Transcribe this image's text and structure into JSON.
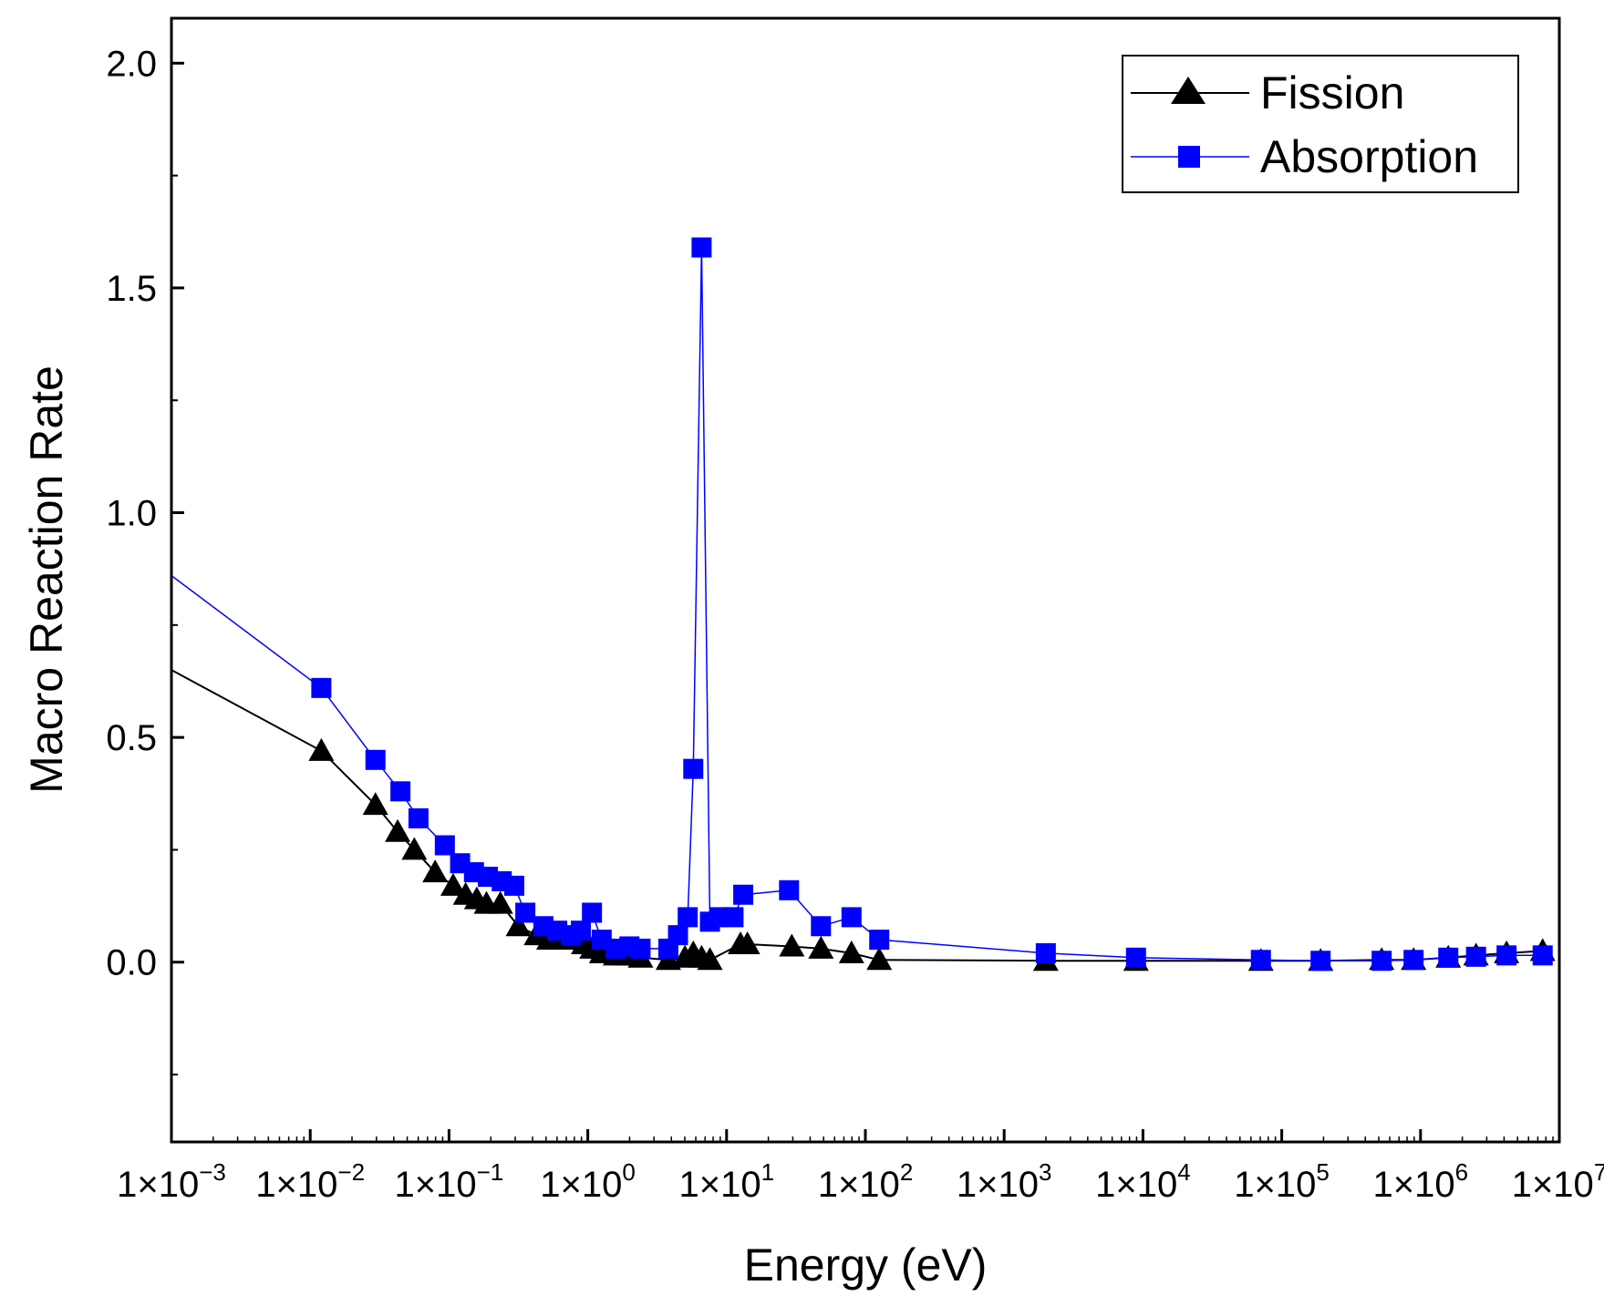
{
  "chart_data": {
    "type": "line",
    "xlabel": "Energy (eV)",
    "ylabel": "Macro Reaction Rate",
    "xscale": "log",
    "xlim_exp": [
      -3,
      7
    ],
    "ylim": [
      -0.4,
      2.1
    ],
    "y_ticks": [
      0.0,
      0.5,
      1.0,
      1.5,
      2.0
    ],
    "y_tick_labels": [
      "0.0",
      "0.5",
      "1.0",
      "1.5",
      "2.0"
    ],
    "x_ticks": [
      {
        "base": "1×10",
        "exp": "−3"
      },
      {
        "base": "1×10",
        "exp": "−2"
      },
      {
        "base": "1×10",
        "exp": "−1"
      },
      {
        "base": "1×10",
        "exp": "0"
      },
      {
        "base": "1×10",
        "exp": "1"
      },
      {
        "base": "1×10",
        "exp": "2"
      },
      {
        "base": "1×10",
        "exp": "3"
      },
      {
        "base": "1×10",
        "exp": "4"
      },
      {
        "base": "1×10",
        "exp": "5"
      },
      {
        "base": "1×10",
        "exp": "6"
      },
      {
        "base": "1×10",
        "exp": "7"
      }
    ],
    "legend_position": "top-right",
    "series": [
      {
        "name": "Fission",
        "color": "#000000",
        "marker": "triangle",
        "points": [
          [
            -3.0,
            0.65
          ],
          [
            -1.92,
            0.47
          ],
          [
            -1.53,
            0.35
          ],
          [
            -1.37,
            0.29
          ],
          [
            -1.25,
            0.25
          ],
          [
            -1.1,
            0.2
          ],
          [
            -0.97,
            0.17
          ],
          [
            -0.88,
            0.15
          ],
          [
            -0.8,
            0.14
          ],
          [
            -0.73,
            0.13
          ],
          [
            -0.63,
            0.13
          ],
          [
            -0.5,
            0.08
          ],
          [
            -0.37,
            0.06
          ],
          [
            -0.28,
            0.05
          ],
          [
            -0.18,
            0.05
          ],
          [
            -0.1,
            0.05
          ],
          [
            -0.03,
            0.04
          ],
          [
            0.03,
            0.03
          ],
          [
            0.1,
            0.02
          ],
          [
            0.2,
            0.015
          ],
          [
            0.28,
            0.015
          ],
          [
            0.38,
            0.01
          ],
          [
            0.58,
            0.005
          ],
          [
            0.7,
            0.01
          ],
          [
            0.76,
            0.02
          ],
          [
            0.82,
            0.01
          ],
          [
            0.88,
            0.005
          ],
          [
            1.1,
            0.04
          ],
          [
            1.15,
            0.04
          ],
          [
            1.47,
            0.035
          ],
          [
            1.68,
            0.03
          ],
          [
            1.9,
            0.02
          ],
          [
            2.1,
            0.005
          ],
          [
            3.3,
            0.003
          ],
          [
            3.95,
            0.003
          ],
          [
            4.85,
            0.003
          ],
          [
            5.28,
            0.003
          ],
          [
            5.72,
            0.005
          ],
          [
            5.95,
            0.005
          ],
          [
            6.2,
            0.01
          ],
          [
            6.4,
            0.015
          ],
          [
            6.62,
            0.02
          ],
          [
            6.88,
            0.025
          ]
        ]
      },
      {
        "name": "Absorption",
        "color": "#0000ff",
        "marker": "square",
        "points": [
          [
            -3.0,
            0.86
          ],
          [
            -1.92,
            0.61
          ],
          [
            -1.53,
            0.45
          ],
          [
            -1.35,
            0.38
          ],
          [
            -1.22,
            0.32
          ],
          [
            -1.03,
            0.26
          ],
          [
            -0.92,
            0.22
          ],
          [
            -0.82,
            0.2
          ],
          [
            -0.72,
            0.19
          ],
          [
            -0.62,
            0.18
          ],
          [
            -0.53,
            0.17
          ],
          [
            -0.45,
            0.11
          ],
          [
            -0.32,
            0.08
          ],
          [
            -0.22,
            0.07
          ],
          [
            -0.12,
            0.06
          ],
          [
            -0.05,
            0.07
          ],
          [
            0.03,
            0.11
          ],
          [
            0.1,
            0.05
          ],
          [
            0.2,
            0.03
          ],
          [
            0.3,
            0.035
          ],
          [
            0.38,
            0.03
          ],
          [
            0.58,
            0.03
          ],
          [
            0.65,
            0.06
          ],
          [
            0.72,
            0.1
          ],
          [
            0.76,
            0.43
          ],
          [
            0.82,
            1.59
          ],
          [
            0.88,
            0.09
          ],
          [
            0.95,
            0.1
          ],
          [
            1.05,
            0.1
          ],
          [
            1.12,
            0.15
          ],
          [
            1.45,
            0.16
          ],
          [
            1.68,
            0.08
          ],
          [
            1.9,
            0.1
          ],
          [
            2.1,
            0.05
          ],
          [
            3.3,
            0.02
          ],
          [
            3.95,
            0.01
          ],
          [
            4.85,
            0.005
          ],
          [
            5.28,
            0.003
          ],
          [
            5.72,
            0.003
          ],
          [
            5.95,
            0.005
          ],
          [
            6.2,
            0.01
          ],
          [
            6.4,
            0.012
          ],
          [
            6.62,
            0.015
          ],
          [
            6.88,
            0.015
          ]
        ]
      }
    ]
  }
}
